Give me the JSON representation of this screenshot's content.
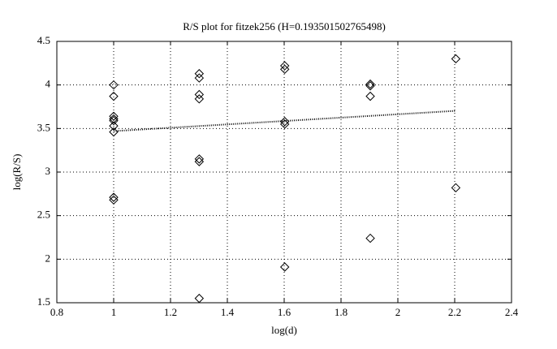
{
  "chart_data": {
    "type": "scatter",
    "title": "R/S plot for fitzek256 (H=0.193501502765498)",
    "xlabel": "log(d)",
    "ylabel": "log(R/S)",
    "x": [
      1,
      1,
      1,
      1,
      1,
      1,
      1,
      1,
      1,
      1.301,
      1.301,
      1.301,
      1.301,
      1.301,
      1.301,
      1.301,
      1.602,
      1.602,
      1.602,
      1.602,
      1.602,
      1.903,
      1.903,
      1.903,
      1.903,
      2.204,
      2.204
    ],
    "values": [
      4.0,
      3.87,
      3.64,
      3.61,
      3.59,
      3.53,
      3.46,
      2.71,
      2.68,
      4.13,
      4.08,
      3.89,
      3.84,
      3.15,
      3.12,
      1.55,
      4.22,
      4.18,
      3.58,
      3.55,
      1.91,
      4.01,
      3.99,
      3.87,
      2.24,
      4.3,
      2.82
    ],
    "color": "#000000",
    "fit": {
      "x": [
        1,
        2.204
      ],
      "values": [
        3.47,
        3.703
      ],
      "color": "#000000"
    },
    "xlim": [
      0.8,
      2.4
    ],
    "xticks": [
      0.8,
      1,
      1.2,
      1.4,
      1.6,
      1.8,
      2,
      2.2,
      2.4
    ],
    "ylim": [
      1.5,
      4.5
    ],
    "yticks": [
      1.5,
      2,
      2.5,
      3,
      3.5,
      4,
      4.5
    ],
    "grid": true
  }
}
